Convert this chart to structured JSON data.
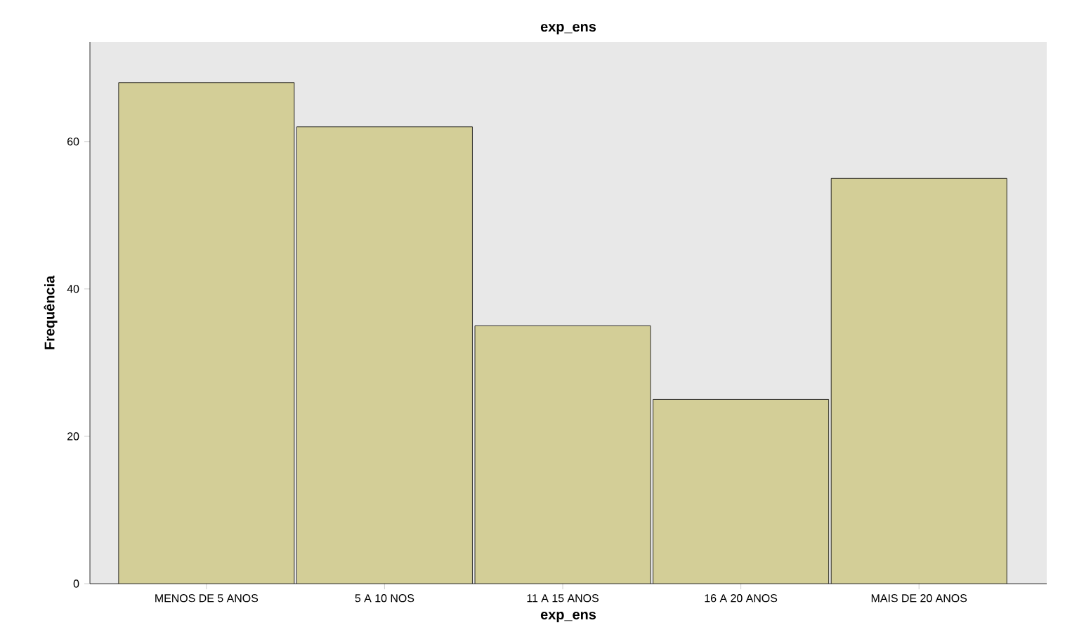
{
  "chart_data": {
    "type": "bar",
    "title": "exp_ens",
    "xlabel": "exp_ens",
    "ylabel": "Frequência",
    "categories": [
      "MENOS DE 5 ANOS",
      "5 A 10 NOS",
      "11 A 15 ANOS",
      "16 A 20 ANOS",
      "MAIS DE 20 ANOS"
    ],
    "values": [
      68,
      62,
      35,
      25,
      55
    ],
    "color": "#d3ce97",
    "ylim": [
      0,
      73.5
    ],
    "yticks": [
      0,
      20,
      40,
      60
    ],
    "grid": false
  }
}
